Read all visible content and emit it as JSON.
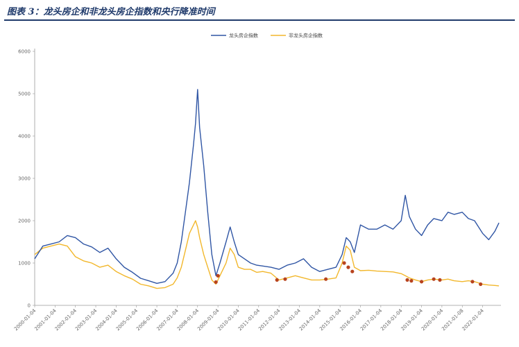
{
  "title": "图表 3：龙头房企和非龙头房企指数和央行降准时间",
  "chart_data": {
    "type": "line",
    "title": "图表 3：龙头房企和非龙头房企指数和央行降准时间",
    "xlabel": "",
    "ylabel": "",
    "ylim": [
      0,
      6000
    ],
    "yticks": [
      0,
      1000,
      2000,
      3000,
      4000,
      5000,
      6000
    ],
    "xticks": [
      "2000-01-04",
      "2001-01-04",
      "2002-01-04",
      "2003-01-04",
      "2004-01-04",
      "2005-01-04",
      "2006-01-04",
      "2007-01-04",
      "2008-01-04",
      "2009-01-04",
      "2010-01-04",
      "2011-01-04",
      "2012-01-04",
      "2013-01-04",
      "2014-01-04",
      "2015-01-04",
      "2016-01-04",
      "2017-01-04",
      "2018-01-04",
      "2019-01-04",
      "2020-01-04",
      "2021-01-08",
      "2022-01-04"
    ],
    "grid": false,
    "legend_position": "top-center",
    "series": [
      {
        "name": "龙头房企指数",
        "color": "#2f55a4",
        "x": [
          2000.0,
          2000.4,
          2000.8,
          2001.2,
          2001.6,
          2002.0,
          2002.4,
          2002.8,
          2003.2,
          2003.6,
          2004.0,
          2004.4,
          2004.8,
          2005.2,
          2005.6,
          2006.0,
          2006.4,
          2006.8,
          2007.0,
          2007.2,
          2007.4,
          2007.6,
          2007.8,
          2007.9,
          2008.0,
          2008.1,
          2008.3,
          2008.5,
          2008.7,
          2008.9,
          2009.1,
          2009.4,
          2009.6,
          2009.8,
          2010.0,
          2010.3,
          2010.6,
          2010.9,
          2011.2,
          2011.6,
          2012.0,
          2012.4,
          2012.8,
          2013.2,
          2013.6,
          2014.0,
          2014.4,
          2014.8,
          2015.1,
          2015.3,
          2015.5,
          2015.7,
          2016.0,
          2016.4,
          2016.8,
          2017.2,
          2017.6,
          2018.0,
          2018.2,
          2018.4,
          2018.7,
          2019.0,
          2019.3,
          2019.6,
          2020.0,
          2020.3,
          2020.6,
          2021.0,
          2021.3,
          2021.6,
          2022.0,
          2022.3,
          2022.6,
          2022.8
        ],
        "values": [
          1100,
          1400,
          1450,
          1500,
          1650,
          1600,
          1450,
          1380,
          1250,
          1350,
          1100,
          900,
          780,
          640,
          580,
          520,
          560,
          760,
          1000,
          1500,
          2200,
          2900,
          3800,
          4300,
          5100,
          4200,
          3300,
          2200,
          1200,
          700,
          1000,
          1500,
          1850,
          1500,
          1200,
          1100,
          1000,
          950,
          930,
          900,
          850,
          950,
          1000,
          1100,
          900,
          800,
          850,
          900,
          1200,
          1600,
          1500,
          1250,
          1900,
          1800,
          1800,
          1900,
          1800,
          2000,
          2600,
          2100,
          1800,
          1650,
          1900,
          2050,
          2000,
          2200,
          2150,
          2200,
          2050,
          2000,
          1700,
          1550,
          1750,
          1950
        ]
      },
      {
        "name": "非龙头房企指数",
        "color": "#f2b72b",
        "x": [
          2000.0,
          2000.4,
          2000.8,
          2001.2,
          2001.6,
          2002.0,
          2002.4,
          2002.8,
          2003.2,
          2003.6,
          2004.0,
          2004.4,
          2004.8,
          2005.2,
          2005.6,
          2006.0,
          2006.4,
          2006.8,
          2007.0,
          2007.2,
          2007.4,
          2007.6,
          2007.8,
          2007.9,
          2008.0,
          2008.1,
          2008.3,
          2008.5,
          2008.7,
          2008.9,
          2009.1,
          2009.4,
          2009.6,
          2009.8,
          2010.0,
          2010.3,
          2010.6,
          2010.9,
          2011.2,
          2011.6,
          2012.0,
          2012.4,
          2012.8,
          2013.2,
          2013.6,
          2014.0,
          2014.4,
          2014.8,
          2015.1,
          2015.3,
          2015.5,
          2015.7,
          2016.0,
          2016.4,
          2016.8,
          2017.2,
          2017.6,
          2018.0,
          2018.2,
          2018.4,
          2018.7,
          2019.0,
          2019.3,
          2019.6,
          2020.0,
          2020.3,
          2020.6,
          2021.0,
          2021.3,
          2021.6,
          2022.0,
          2022.3,
          2022.6,
          2022.8
        ],
        "values": [
          1200,
          1350,
          1400,
          1450,
          1400,
          1150,
          1050,
          1000,
          900,
          950,
          800,
          700,
          620,
          500,
          460,
          400,
          420,
          500,
          650,
          900,
          1300,
          1700,
          1900,
          2000,
          1850,
          1600,
          1200,
          900,
          600,
          500,
          700,
          1000,
          1350,
          1200,
          900,
          850,
          850,
          780,
          800,
          760,
          600,
          650,
          700,
          650,
          600,
          600,
          620,
          650,
          1000,
          1400,
          1300,
          900,
          820,
          830,
          810,
          800,
          790,
          750,
          700,
          650,
          600,
          560,
          600,
          620,
          600,
          620,
          580,
          560,
          580,
          560,
          500,
          480,
          470,
          460
        ]
      }
    ],
    "annotations": {
      "rrr_cut_markers": {
        "color": "#b8431e",
        "points": [
          [
            2008.9,
            550
          ],
          [
            2009.0,
            700
          ],
          [
            2011.9,
            600
          ],
          [
            2012.3,
            620
          ],
          [
            2014.3,
            620
          ],
          [
            2015.2,
            1000
          ],
          [
            2015.4,
            900
          ],
          [
            2015.6,
            800
          ],
          [
            2018.3,
            600
          ],
          [
            2018.5,
            580
          ],
          [
            2019.0,
            560
          ],
          [
            2019.6,
            620
          ],
          [
            2019.9,
            600
          ],
          [
            2021.5,
            560
          ],
          [
            2021.9,
            500
          ]
        ]
      }
    }
  }
}
